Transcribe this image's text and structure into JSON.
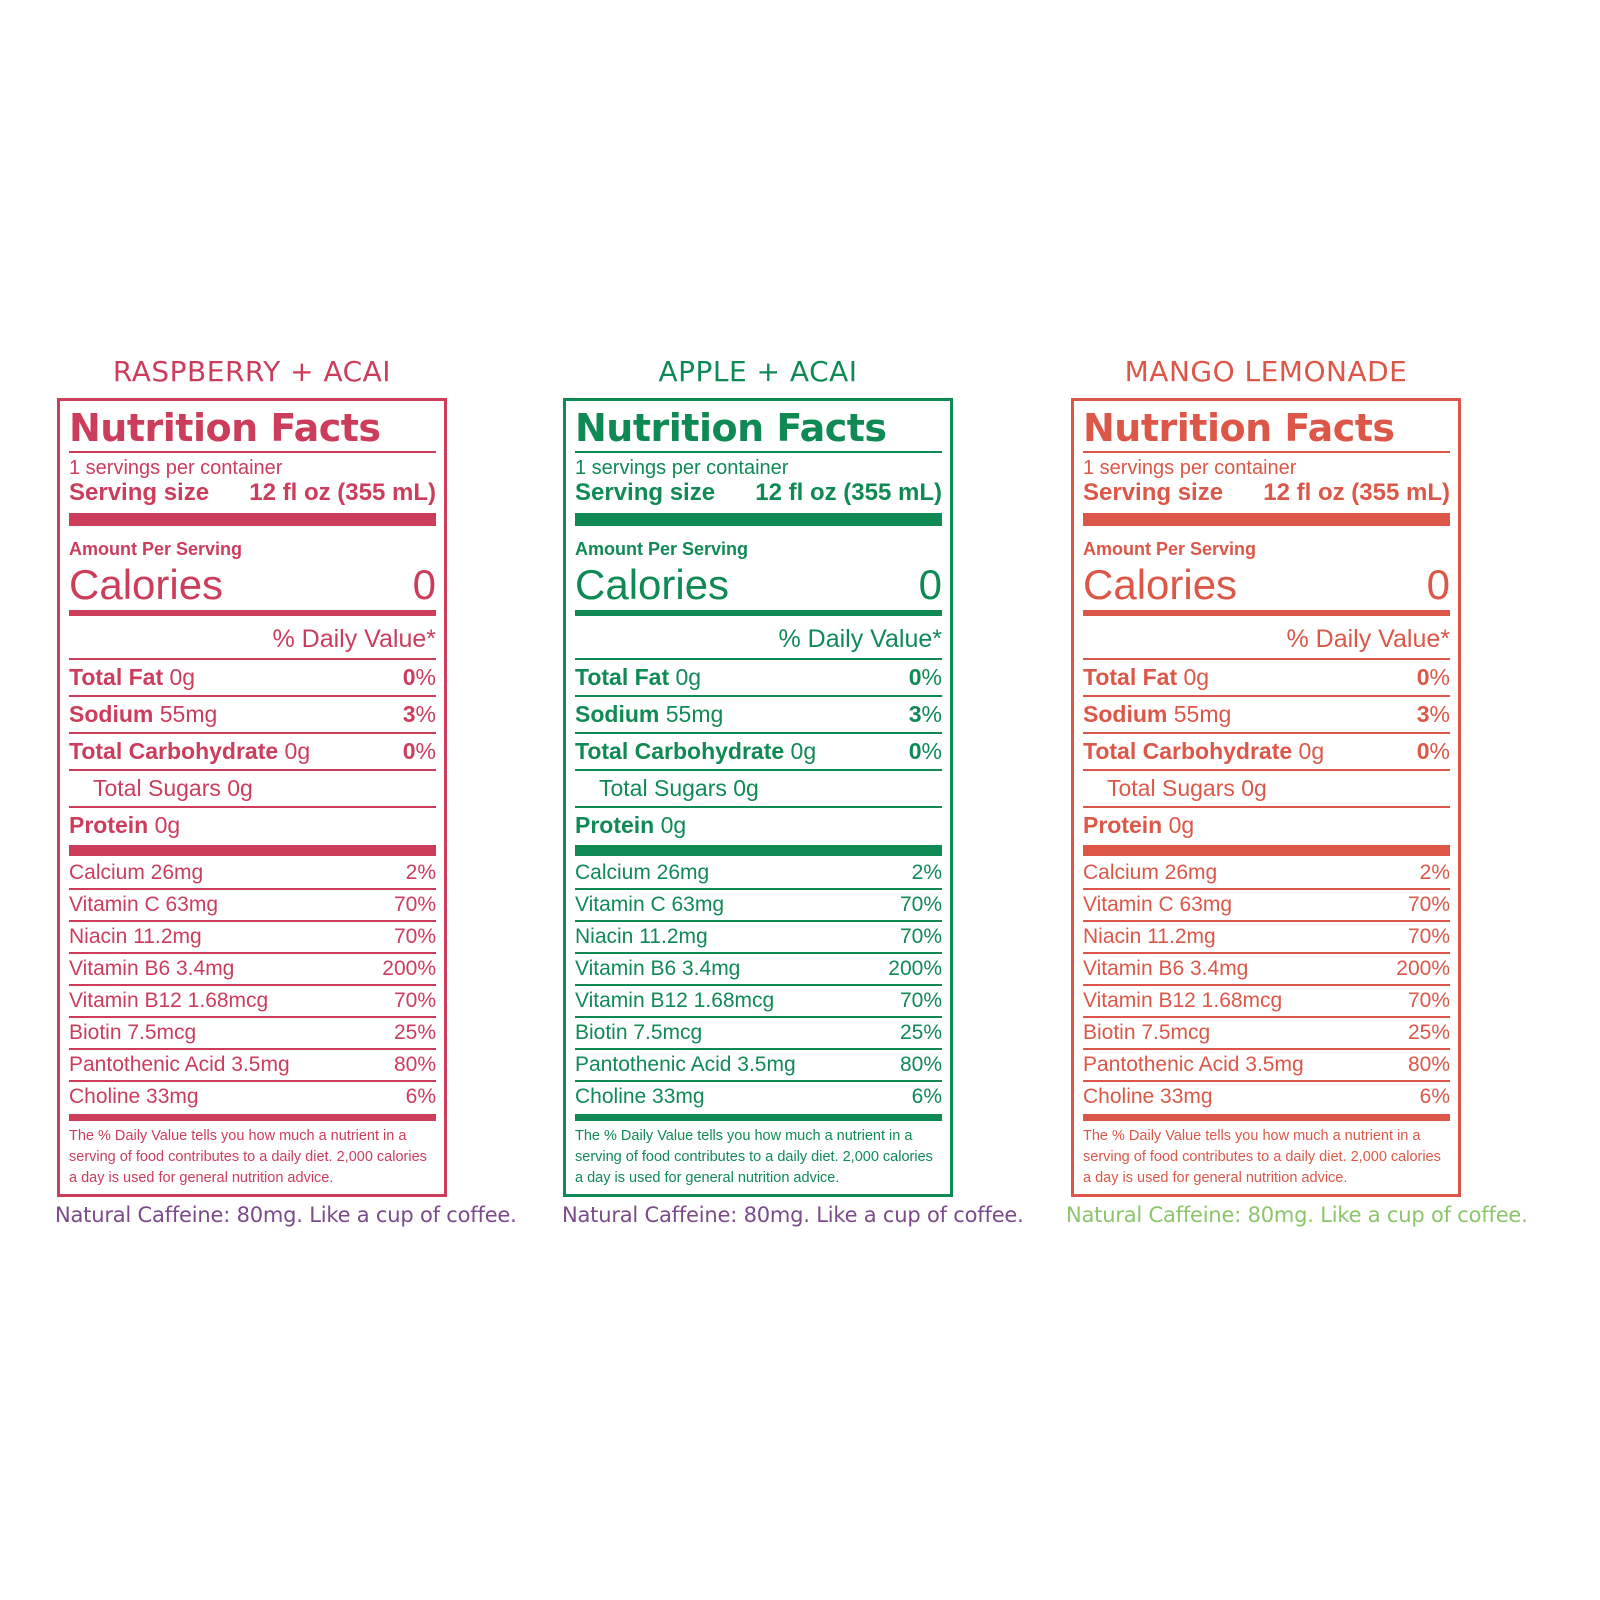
{
  "colors": {
    "raspberry": "#cc3d5c",
    "apple": "#0f8a55",
    "mango": "#dc5748",
    "caffeine_purple": "#7a4a8a",
    "caffeine_green": "#8cc56a"
  },
  "labels": [
    {
      "flavor": "RASPBERRY + ACAI",
      "title": "Nutrition Facts",
      "servings": "1 servings per container",
      "serving_label": "Serving size",
      "serving_value": "12 fl oz (355 mL)",
      "amount": "Amount Per Serving",
      "calories_label": "Calories",
      "calories_value": "0",
      "dv_header": "% Daily Value*",
      "nutrients": [
        {
          "name": "Total Fat",
          "amount": "0g",
          "pct_num": "0",
          "pct_sign": "%"
        },
        {
          "name": "Sodium",
          "amount": "55mg",
          "pct_num": "3",
          "pct_sign": "%"
        },
        {
          "name": "Total Carbohydrate",
          "amount": "0g",
          "pct_num": "0",
          "pct_sign": "%"
        },
        {
          "name": "Total Sugars 0g"
        },
        {
          "name": "Protein",
          "amount": "0g"
        }
      ],
      "micros": [
        {
          "name": "Calcium 26mg",
          "pct": "2%"
        },
        {
          "name": "Vitamin C 63mg",
          "pct": "70%"
        },
        {
          "name": "Niacin 11.2mg",
          "pct": "70%"
        },
        {
          "name": "Vitamin B6 3.4mg",
          "pct": "200%"
        },
        {
          "name": "Vitamin B12 1.68mcg",
          "pct": "70%"
        },
        {
          "name": "Biotin 7.5mcg",
          "pct": "25%"
        },
        {
          "name": "Pantothenic Acid 3.5mg",
          "pct": "80%"
        },
        {
          "name": "Choline 33mg",
          "pct": "6%"
        }
      ],
      "footnote": "The % Daily Value tells you how much a nutrient in a serving of food contributes to a daily diet. 2,000 calories a day is used for general nutrition advice.",
      "caffeine": "Natural Caffeine: 80mg. Like a cup of coffee."
    },
    {
      "flavor": "APPLE + ACAI",
      "title": "Nutrition Facts",
      "servings": "1 servings per container",
      "serving_label": "Serving size",
      "serving_value": "12 fl oz (355 mL)",
      "amount": "Amount Per Serving",
      "calories_label": "Calories",
      "calories_value": "0",
      "dv_header": "% Daily Value*",
      "nutrients": [
        {
          "name": "Total Fat",
          "amount": "0g",
          "pct_num": "0",
          "pct_sign": "%"
        },
        {
          "name": "Sodium",
          "amount": "55mg",
          "pct_num": "3",
          "pct_sign": "%"
        },
        {
          "name": "Total Carbohydrate",
          "amount": "0g",
          "pct_num": "0",
          "pct_sign": "%"
        },
        {
          "name": "Total Sugars 0g"
        },
        {
          "name": "Protein",
          "amount": "0g"
        }
      ],
      "micros": [
        {
          "name": "Calcium 26mg",
          "pct": "2%"
        },
        {
          "name": "Vitamin C 63mg",
          "pct": "70%"
        },
        {
          "name": "Niacin 11.2mg",
          "pct": "70%"
        },
        {
          "name": "Vitamin B6 3.4mg",
          "pct": "200%"
        },
        {
          "name": "Vitamin B12 1.68mcg",
          "pct": "70%"
        },
        {
          "name": "Biotin 7.5mcg",
          "pct": "25%"
        },
        {
          "name": "Pantothenic Acid 3.5mg",
          "pct": "80%"
        },
        {
          "name": "Choline 33mg",
          "pct": "6%"
        }
      ],
      "footnote": "The % Daily Value tells you how much a nutrient in a serving of food contributes to a daily diet. 2,000 calories a day is used for general nutrition advice.",
      "caffeine": "Natural Caffeine: 80mg. Like a cup of coffee."
    },
    {
      "flavor": "MANGO LEMONADE",
      "title": "Nutrition Facts",
      "servings": "1 servings per container",
      "serving_label": "Serving size",
      "serving_value": "12 fl oz (355 mL)",
      "amount": "Amount Per Serving",
      "calories_label": "Calories",
      "calories_value": "0",
      "dv_header": "% Daily Value*",
      "nutrients": [
        {
          "name": "Total Fat",
          "amount": "0g",
          "pct_num": "0",
          "pct_sign": "%"
        },
        {
          "name": "Sodium",
          "amount": "55mg",
          "pct_num": "3",
          "pct_sign": "%"
        },
        {
          "name": "Total Carbohydrate",
          "amount": "0g",
          "pct_num": "0",
          "pct_sign": "%"
        },
        {
          "name": "Total Sugars 0g"
        },
        {
          "name": "Protein",
          "amount": "0g"
        }
      ],
      "micros": [
        {
          "name": "Calcium 26mg",
          "pct": "2%"
        },
        {
          "name": "Vitamin C 63mg",
          "pct": "70%"
        },
        {
          "name": "Niacin 11.2mg",
          "pct": "70%"
        },
        {
          "name": "Vitamin B6 3.4mg",
          "pct": "200%"
        },
        {
          "name": "Vitamin B12 1.68mcg",
          "pct": "70%"
        },
        {
          "name": "Biotin 7.5mcg",
          "pct": "25%"
        },
        {
          "name": "Pantothenic Acid 3.5mg",
          "pct": "80%"
        },
        {
          "name": "Choline 33mg",
          "pct": "6%"
        }
      ],
      "footnote": "The % Daily Value tells you how much a nutrient in a serving of food contributes to a daily diet. 2,000 calories a day is used for general nutrition advice.",
      "caffeine": "Natural Caffeine: 80mg. Like a cup of coffee."
    }
  ]
}
